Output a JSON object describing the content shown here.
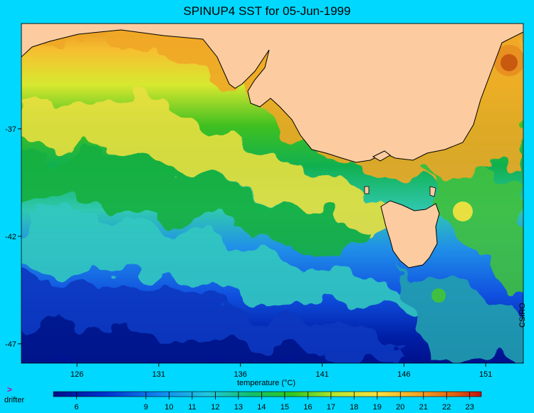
{
  "title": "SPINUP4 SST for 05-Jun-1999",
  "credit": "CSIRO",
  "legend": {
    "drifter_glyph": ">",
    "drifter_label": "drifter"
  },
  "colors": {
    "land": "#fccca0",
    "background": "#00d8ff",
    "coast": "#000000"
  },
  "map": {
    "lon_range": [
      122.6,
      153.3
    ],
    "lat_range": [
      -47.9,
      -32.1
    ],
    "lon_ticks": [
      126,
      131,
      136,
      141,
      146,
      151
    ],
    "lat_ticks": [
      -37,
      -42,
      -47
    ]
  },
  "colorbar": {
    "label": "temperature (°C)",
    "range": [
      5.0,
      23.5
    ],
    "ticks": [
      6,
      9,
      10,
      11,
      12,
      13,
      14,
      15,
      16,
      17,
      18,
      19,
      20,
      21,
      22,
      23
    ]
  }
}
